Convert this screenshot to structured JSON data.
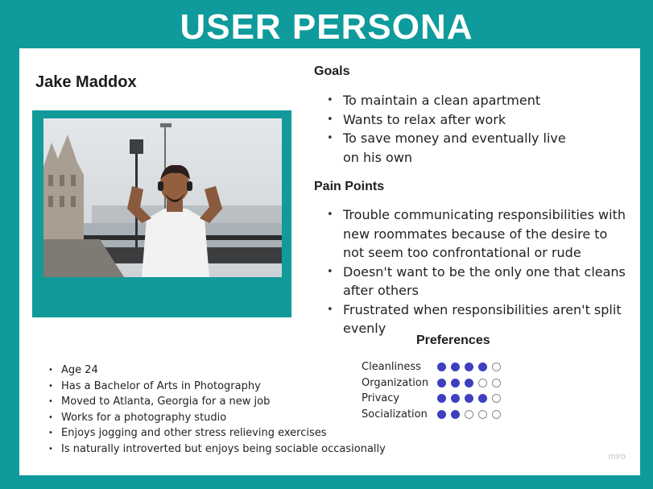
{
  "title": "USER PERSONA",
  "persona": {
    "name": "Jake Maddox",
    "facts": [
      "Age 24",
      "Has a Bachelor of Arts in Photography",
      "Moved to Atlanta, Georgia for a new job",
      "Works for a photography studio",
      "Enjoys jogging and other stress relieving exercises",
      "Is naturally introverted but enjoys being sociable occasionally"
    ]
  },
  "goals": {
    "heading": "Goals",
    "items": [
      "To maintain a clean apartment",
      "Wants to relax after work",
      "To save money and eventually live on his own"
    ]
  },
  "pain_points": {
    "heading": "Pain Points",
    "items": [
      "Trouble communicating responsibilities with new roommates because of the desire to not seem too confrontational or rude",
      "Doesn't want to be the only one that cleans after others",
      "Frustrated when responsibilities aren't split evenly"
    ]
  },
  "preferences": {
    "heading": "Preferences",
    "max": 5,
    "items": [
      {
        "label": "Cleanliness",
        "value": 4
      },
      {
        "label": "Organization",
        "value": 3
      },
      {
        "label": "Privacy",
        "value": 4
      },
      {
        "label": "Socialization",
        "value": 2
      }
    ]
  },
  "colors": {
    "background": "#0f9b9b",
    "filled_dot": "#3f3fc0"
  },
  "brand": "miro"
}
